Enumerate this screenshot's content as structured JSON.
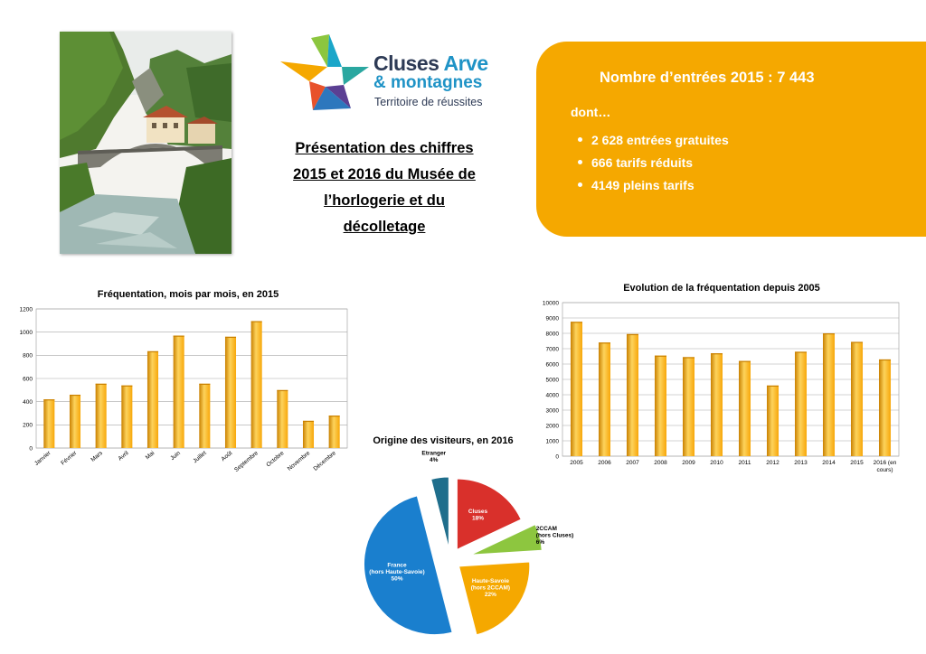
{
  "logo": {
    "line1_main": "Cluses",
    "line1_accent": "Arve",
    "line2": "& montagnes",
    "tagline": "Territoire de réussites"
  },
  "presentation_title": [
    "Présentation des chiffres",
    "2015 et 2016 du Musée de",
    "l’horlogerie et du",
    "décolletage"
  ],
  "summary": {
    "title": "Nombre d’entrées 2015 : 7 443",
    "dont": "dont…",
    "items": [
      "2 628 entrées gratuites",
      "666 tarifs réduits",
      "4149 pleins tarifs"
    ]
  },
  "colors": {
    "bar": "#f7a70a",
    "bar_light": "#fdd35c",
    "bar_dark": "#c98000",
    "orange_box": "#f5a800",
    "pie": [
      "#d9302b",
      "#8dc63f",
      "#f5a800",
      "#1a7fce",
      "#1f6e8c"
    ]
  },
  "chart_data": [
    {
      "type": "bar",
      "title": "Fréquentation, mois par mois, en 2015",
      "categories": [
        "Janvier",
        "Février",
        "Mars",
        "Avril",
        "Mai",
        "Juin",
        "Juillet",
        "Août",
        "Septembre",
        "Octobre",
        "Novembre",
        "Décembre"
      ],
      "values": [
        420,
        460,
        555,
        540,
        835,
        970,
        555,
        960,
        1095,
        500,
        235,
        280
      ],
      "ylim": [
        0,
        1200
      ],
      "yticks": [
        0,
        200,
        400,
        600,
        800,
        1000,
        1200
      ],
      "grid": true
    },
    {
      "type": "bar",
      "title": "Evolution de la fréquentation depuis 2005",
      "categories": [
        "2005",
        "2006",
        "2007",
        "2008",
        "2009",
        "2010",
        "2011",
        "2012",
        "2013",
        "2014",
        "2015",
        "2016 (en cours)"
      ],
      "values": [
        8750,
        7400,
        7950,
        6550,
        6450,
        6700,
        6200,
        4600,
        6800,
        8000,
        7443,
        6300
      ],
      "ylim": [
        0,
        10000
      ],
      "yticks": [
        0,
        1000,
        2000,
        3000,
        4000,
        5000,
        6000,
        7000,
        8000,
        9000,
        10000
      ],
      "grid": true
    },
    {
      "type": "pie",
      "title": "Origine des visiteurs, en 2016",
      "slices": [
        {
          "label": "Cluses",
          "pct": "18%",
          "value": 18
        },
        {
          "label": "2CCAM (hors Cluses)",
          "pct": "6%",
          "value": 6
        },
        {
          "label": "Haute-Savoie (hors 2CCAM)",
          "pct": "22%",
          "value": 22
        },
        {
          "label": "France (hors Haute-Savoie)",
          "pct": "50%",
          "value": 50
        },
        {
          "label": "Etranger",
          "pct": "4%",
          "value": 4
        }
      ]
    }
  ]
}
